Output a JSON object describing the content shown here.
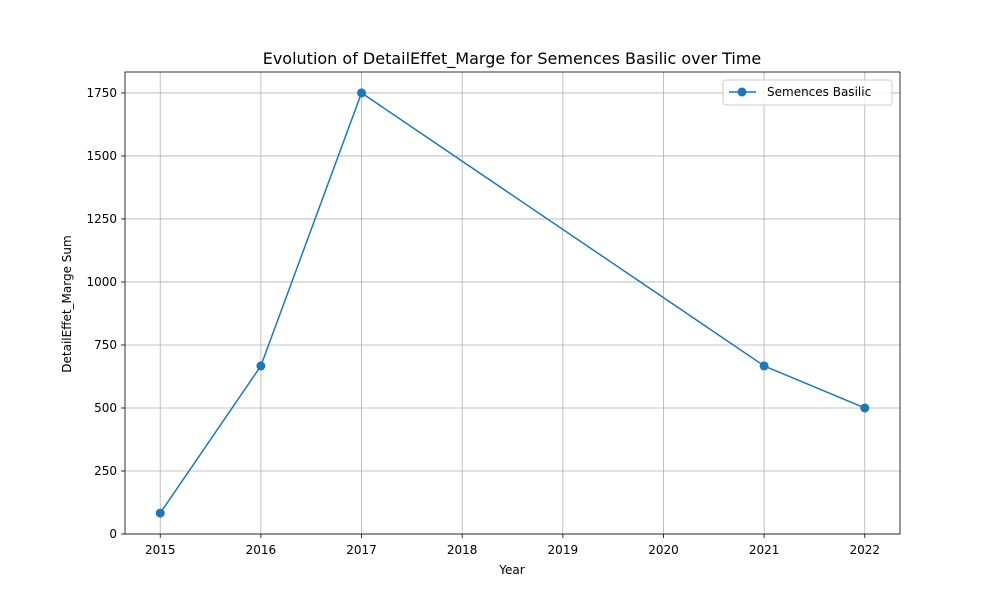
{
  "chart_data": {
    "type": "line",
    "title": "Evolution of DetailEffet_Marge for Semences Basilic over Time",
    "xlabel": "Year",
    "ylabel": "DetailEffet_Marge Sum",
    "x": [
      2015,
      2016,
      2017,
      2021,
      2022
    ],
    "x_ticks": [
      "2015",
      "2016",
      "2017",
      "2018",
      "2019",
      "2020",
      "2021",
      "2022"
    ],
    "y_ticks": [
      "0",
      "250",
      "500",
      "750",
      "1000",
      "1250",
      "1500",
      "1750"
    ],
    "xlim": [
      2014.65,
      2022.35
    ],
    "ylim": [
      0,
      1833
    ],
    "grid": true,
    "legend_position": "upper right",
    "series": [
      {
        "name": "Semences Basilic",
        "color": "#1f77b4",
        "marker": "circle",
        "values": [
          83,
          667,
          1750,
          667,
          500
        ]
      }
    ]
  }
}
